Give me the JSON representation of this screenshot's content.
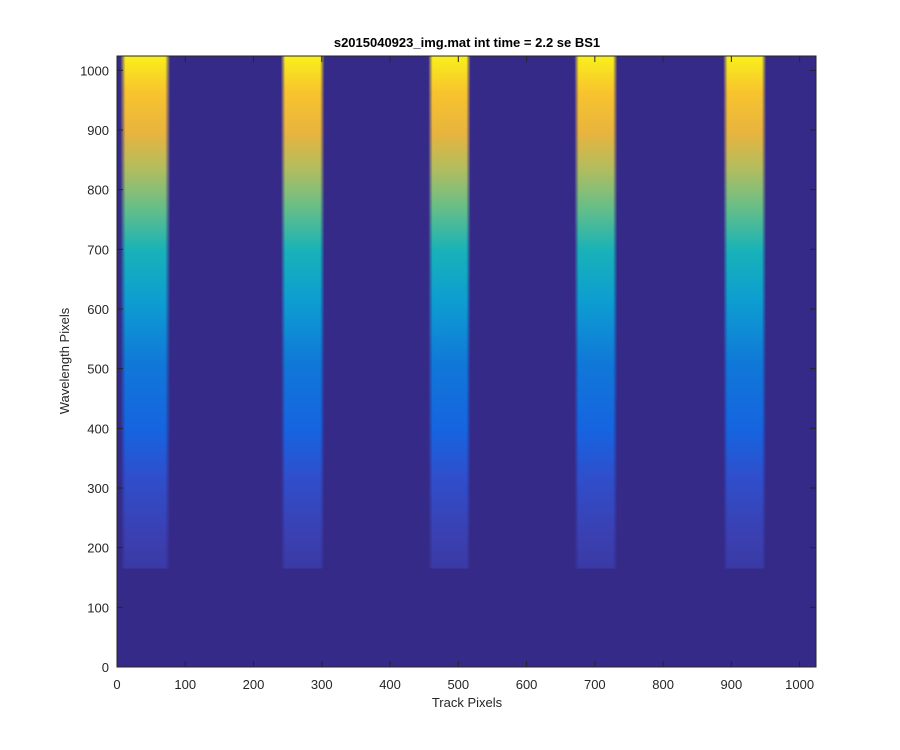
{
  "chart_data": {
    "type": "heatmap",
    "title": "s2015040923_img.mat int time = 2.2 se   BS1",
    "xlabel": "Track Pixels",
    "ylabel": "Wavelength Pixels",
    "xlim": [
      0,
      1024
    ],
    "ylim": [
      0,
      1024
    ],
    "xticks": [
      0,
      100,
      200,
      300,
      400,
      500,
      600,
      700,
      800,
      900,
      1000
    ],
    "yticks": [
      0,
      100,
      200,
      300,
      400,
      500,
      600,
      700,
      800,
      900,
      1000
    ],
    "colormap": "parula",
    "background_value_color": "#352a87",
    "bands": [
      {
        "track_start": 5,
        "track_end": 78
      },
      {
        "track_start": 240,
        "track_end": 304
      },
      {
        "track_start": 456,
        "track_end": 518
      },
      {
        "track_start": 670,
        "track_end": 733
      },
      {
        "track_start": 888,
        "track_end": 951
      }
    ],
    "band_wavelength_start": 165,
    "band_wavelength_end": 1024,
    "grid": false
  }
}
